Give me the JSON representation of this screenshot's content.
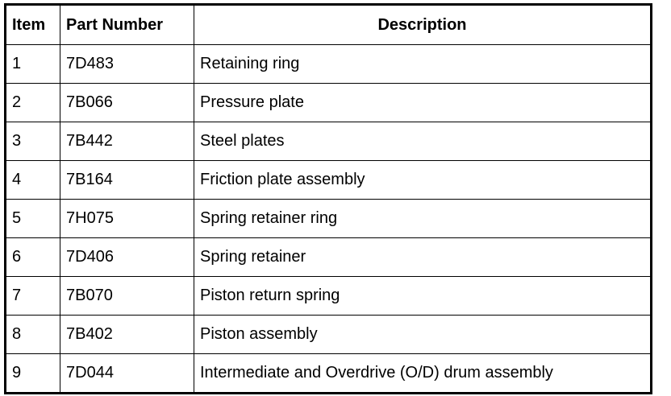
{
  "table": {
    "headers": [
      "Item",
      "Part Number",
      "Description"
    ],
    "rows": [
      [
        "1",
        "7D483",
        "Retaining ring"
      ],
      [
        "2",
        "7B066",
        "Pressure plate"
      ],
      [
        "3",
        "7B442",
        "Steel plates"
      ],
      [
        "4",
        "7B164",
        "Friction plate assembly"
      ],
      [
        "5",
        "7H075",
        "Spring retainer ring"
      ],
      [
        "6",
        "7D406",
        "Spring retainer"
      ],
      [
        "7",
        "7B070",
        "Piston return spring"
      ],
      [
        "8",
        "7B402",
        "Piston assembly"
      ],
      [
        "9",
        "7D044",
        "Intermediate and Overdrive (O/D) drum assembly"
      ]
    ]
  }
}
